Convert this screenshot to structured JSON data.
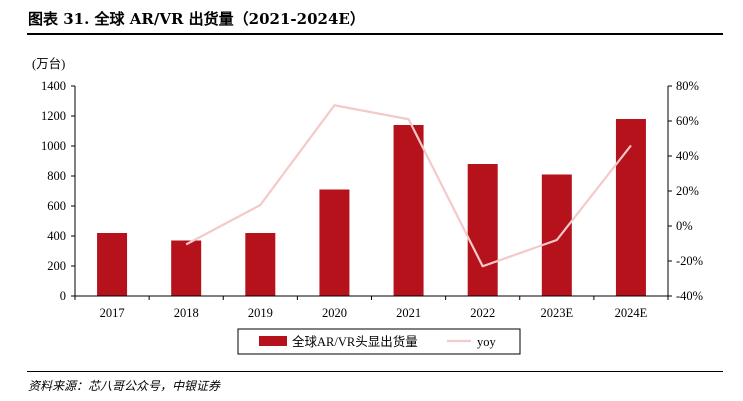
{
  "header": {
    "title": "图表 31. 全球 AR/VR 出货量（2021-2024E）"
  },
  "footer": {
    "source": "资料来源：芯八哥公众号，中银证券"
  },
  "colors": {
    "bar": "#b5121b",
    "line": "#f3c9c9",
    "axis": "#000000"
  },
  "chart_data": {
    "type": "bar",
    "title": "全球 AR/VR 出货量（2021-2024E）",
    "unit_label": "(万台)",
    "categories": [
      "2017",
      "2018",
      "2019",
      "2020",
      "2021",
      "2022",
      "2023E",
      "2024E"
    ],
    "series": [
      {
        "name": "全球AR/VR头显出货量",
        "kind": "bar",
        "axis": "left",
        "values": [
          420,
          370,
          420,
          710,
          1140,
          880,
          810,
          1180
        ]
      },
      {
        "name": "yoy",
        "kind": "line",
        "axis": "right",
        "values": [
          null,
          -10.5,
          12,
          69,
          61,
          -23,
          -8,
          46
        ]
      }
    ],
    "y_left": {
      "min": 0,
      "max": 1400,
      "step": 200,
      "ticks": [
        "0",
        "200",
        "400",
        "600",
        "800",
        "1000",
        "1200",
        "1400"
      ]
    },
    "y_right": {
      "min": -40,
      "max": 80,
      "step": 20,
      "ticks": [
        "-40%",
        "-20%",
        "0%",
        "20%",
        "40%",
        "60%",
        "80%"
      ]
    },
    "legend_position": "bottom-center",
    "grid": false
  }
}
